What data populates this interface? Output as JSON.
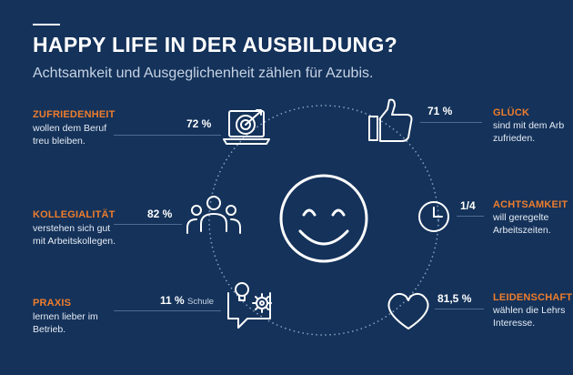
{
  "header": {
    "title": "HAPPY LIFE IN DER AUSBILDUNG?",
    "subtitle": "Achtsamkeit und Ausgeglichenheit zählen für Azubis."
  },
  "items": [
    {
      "heading": "ZUFRIEDENHEIT",
      "line1": "wollen dem Beruf",
      "line2": "treu bleiben.",
      "value": "72 %",
      "icon": "laptop-target-icon"
    },
    {
      "heading": "KOLLEGIALITÄT",
      "line1": "verstehen sich gut",
      "line2": "mit Arbeitskollegen.",
      "value": "82 %",
      "icon": "people-group-icon"
    },
    {
      "heading": "PRAXIS",
      "line1": "lernen lieber im",
      "line2": "Betrieb.",
      "value": "11 %",
      "note": "Schule",
      "icon": "lightbulb-gear-chat-icon"
    },
    {
      "heading": "GLÜCK",
      "line1": "sind mit dem Arb",
      "line2": "zufrieden.",
      "value": "71 %",
      "icon": "thumbs-up-icon"
    },
    {
      "heading": "ACHTSAMKEIT",
      "line1": "will geregelte",
      "line2": "Arbeitszeiten.",
      "value": "1/4",
      "icon": "clock-icon"
    },
    {
      "heading": "LEIDENSCHAFT",
      "line1": "wählen die Lehrs",
      "line2": "Interesse.",
      "value": "81,5 %",
      "icon": "heart-icon"
    }
  ],
  "colors": {
    "background": "#14325a",
    "accent": "#ee7d2c",
    "line": "#4f6b92"
  }
}
